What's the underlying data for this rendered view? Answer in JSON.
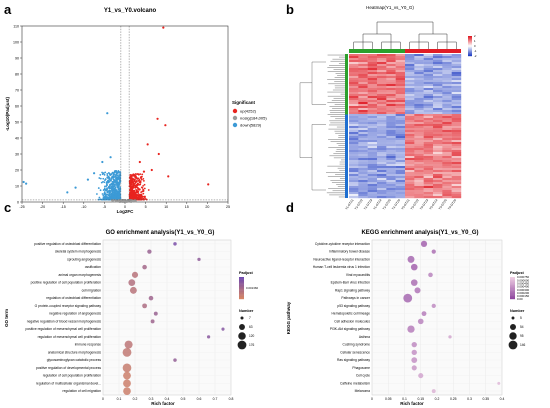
{
  "panels": {
    "a": "a",
    "b": "b",
    "c": "c",
    "d": "d"
  },
  "chart_data": [
    {
      "id": "volcano",
      "type": "scatter",
      "title": "Y1_vs_Y0.volcano",
      "xlabel": "Log2FC",
      "ylabel": "-Log10(Padjust)",
      "xlim": [
        -25,
        25
      ],
      "ylim": [
        0,
        110
      ],
      "xticks": [
        -25,
        -20,
        -15,
        -10,
        -5,
        0,
        5,
        10,
        15,
        20,
        25
      ],
      "yticks": [
        0,
        10,
        20,
        30,
        40,
        50,
        60,
        70,
        80,
        90,
        100,
        110
      ],
      "thresholds": {
        "x": [
          -1,
          1
        ],
        "y": 1.3
      },
      "legend": {
        "title": "Significant",
        "position": "right",
        "entries": [
          {
            "label": "up(4252)",
            "color": "#e8241f"
          },
          {
            "label": "nosig(184,005)",
            "color": "#9a9a9a"
          },
          {
            "label": "down(5829)",
            "color": "#3c9ad6"
          }
        ]
      },
      "series": [
        {
          "name": "up(4252)",
          "color": "#e8241f",
          "count": 4252,
          "points": [
            [
              9.3,
              109
            ],
            [
              9.8,
              48
            ],
            [
              7.9,
              52
            ],
            [
              5.5,
              36
            ],
            [
              8.2,
              30
            ],
            [
              20.2,
              11
            ],
            [
              3.6,
              25
            ],
            [
              10.5,
              16
            ],
            [
              6.5,
              20
            ],
            [
              4.6,
              19
            ]
          ]
        },
        {
          "name": "down(5829)",
          "color": "#3c9ad6",
          "count": 5829,
          "points": [
            [
              -4.3,
              55.5
            ],
            [
              -24.6,
              12.5
            ],
            [
              -24,
              11.5
            ],
            [
              -7.5,
              18
            ],
            [
              -5.5,
              25
            ],
            [
              -9,
              14
            ],
            [
              -3.5,
              28
            ],
            [
              -12,
              9
            ],
            [
              -14,
              6
            ]
          ]
        },
        {
          "name": "nosig(184,005)",
          "color": "#9a9a9a",
          "count": 184005,
          "points": [
            [
              -3,
              0.5
            ],
            [
              2,
              0.7
            ],
            [
              -1,
              0.9
            ]
          ]
        }
      ]
    },
    {
      "id": "heatmap",
      "type": "heatmap",
      "title": "Heatmap(Y1_vs_Y0_G)",
      "columns": [
        "Y1-GTZ1",
        "Y1-GTZ2",
        "Y1-GTZ3",
        "Y1-GTZ4",
        "Y1-GTZ5",
        "Y1-GTZ6",
        "Y0-GTZ1",
        "Y0-GTZ2",
        "Y0-GTZ3",
        "Y0-GTZ4",
        "Y0-GTZ5",
        "Y0-GTZ6"
      ],
      "column_groups": [
        {
          "label": "Y1",
          "color": "#2ca02c",
          "span": 6
        },
        {
          "label": "Y0",
          "color": "#e01d26",
          "span": 6
        }
      ],
      "row_groups": [
        {
          "label": "up",
          "color": "#2ca02c",
          "fraction": 0.42
        },
        {
          "label": "down",
          "color": "#1f6fd0",
          "fraction": 0.58
        }
      ],
      "color_scale": {
        "min": -2,
        "max": 2,
        "ticks": [
          2,
          1,
          0,
          -1,
          -2
        ],
        "low": "#2541c4",
        "mid": "#ffffff",
        "high": "#e01d26"
      },
      "legend_position": "right"
    },
    {
      "id": "go",
      "type": "scatter",
      "title": "GO enrichment analysis(Y1_vs_Y0_G)",
      "xlabel": "Rich factor",
      "ylabel": "GO term",
      "xlim": [
        0,
        0.8
      ],
      "xticks": [
        0,
        0.1,
        0.2,
        0.3,
        0.4,
        0.5,
        0.6,
        0.7,
        0.8
      ],
      "legend": {
        "color_title": "Padjust",
        "color_ticks": [
          "0.001360"
        ],
        "size_title": "Number",
        "size_entries": [
          7,
          63,
          120,
          176
        ],
        "position": "right"
      },
      "terms": [
        "positive regulation of osteoblast differentiation",
        "skeletal system morphogenesis",
        "sprouting angiogenesis",
        "ossification",
        "animal organ morphogenesis",
        "positive regulation of cell population proliferation",
        "cell migration",
        "regulation of osteoblast differentiation",
        "G protein-coupled receptor signaling pathway",
        "negative regulation of angiogenesis",
        "negative regulation of blood vessel morphogenesis",
        "positive regulation of mesenchymal cell proliferation",
        "regulation of mesenchymal cell proliferation",
        "immune response",
        "anatomical structure morphogenesis",
        "glycosaminoglycan catabolic process",
        "positive regulation of developmental process",
        "regulation of cell population proliferation",
        "regulation of multicellular organismal devel...",
        "regulation of cell migration"
      ],
      "rich_factor": [
        0.45,
        0.29,
        0.6,
        0.26,
        0.2,
        0.18,
        0.19,
        0.3,
        0.26,
        0.33,
        0.31,
        0.75,
        0.66,
        0.16,
        0.15,
        0.45,
        0.15,
        0.15,
        0.15,
        0.15
      ],
      "number": [
        12,
        25,
        10,
        30,
        70,
        90,
        95,
        30,
        35,
        18,
        18,
        8,
        9,
        140,
        176,
        12,
        170,
        130,
        130,
        125
      ],
      "padjust_rank": [
        0.9,
        0.6,
        0.7,
        0.5,
        0.3,
        0.35,
        0.3,
        0.55,
        0.4,
        0.6,
        0.55,
        0.8,
        0.75,
        0.25,
        0.2,
        0.65,
        0.15,
        0.1,
        0.1,
        0.1
      ]
    },
    {
      "id": "kegg",
      "type": "scatter",
      "title": "KEGG enrichment analysis(Y1_vs_Y0_G)",
      "xlabel": "Rich factor",
      "ylabel": "KEGG pathway",
      "xlim": [
        0,
        0.4
      ],
      "xticks": [
        0,
        0.05,
        0.1,
        0.15,
        0.2,
        0.25,
        0.3,
        0.35,
        0.4
      ],
      "legend": {
        "color_title": "Padjust",
        "color_ticks": [
          "0.000750",
          "0.000600",
          "0.000450",
          "0.000400",
          "0.000300",
          "0.000200",
          "0.000150",
          "0.00"
        ],
        "size_title": "Number",
        "size_entries": [
          5,
          54,
          95,
          146
        ],
        "position": "right"
      },
      "terms": [
        "Cytokine-cytokine receptor interaction",
        "Inflammatory bowel disease",
        "Neuroactive ligand-receptor interaction",
        "Human T-cell leukemia virus 1 infection",
        "Viral myocarditis",
        "Epstein-Barr virus infection",
        "Rap1 signaling pathway",
        "Pathways in cancer",
        "p53 signaling pathway",
        "Hematopoietic cell lineage",
        "Cell adhesion molecules",
        "PI3K-Akt signaling pathway",
        "Asthma",
        "Cushing syndrome",
        "Cellular senescence",
        "Ras signaling pathway",
        "Phagosome",
        "Cell cycle",
        "Caffeine metabolism",
        "Melanoma"
      ],
      "rich_factor": [
        0.16,
        0.19,
        0.12,
        0.13,
        0.18,
        0.13,
        0.14,
        0.11,
        0.19,
        0.16,
        0.15,
        0.12,
        0.24,
        0.13,
        0.13,
        0.13,
        0.13,
        0.15,
        0.39,
        0.19
      ],
      "number": [
        60,
        20,
        80,
        70,
        25,
        70,
        55,
        146,
        20,
        30,
        45,
        90,
        8,
        40,
        40,
        50,
        35,
        35,
        5,
        15
      ],
      "padjust_rank": [
        0.2,
        0.3,
        0.25,
        0.2,
        0.45,
        0.3,
        0.35,
        0.25,
        0.5,
        0.4,
        0.45,
        0.4,
        0.7,
        0.5,
        0.55,
        0.55,
        0.6,
        0.7,
        0.85,
        0.8
      ]
    }
  ]
}
